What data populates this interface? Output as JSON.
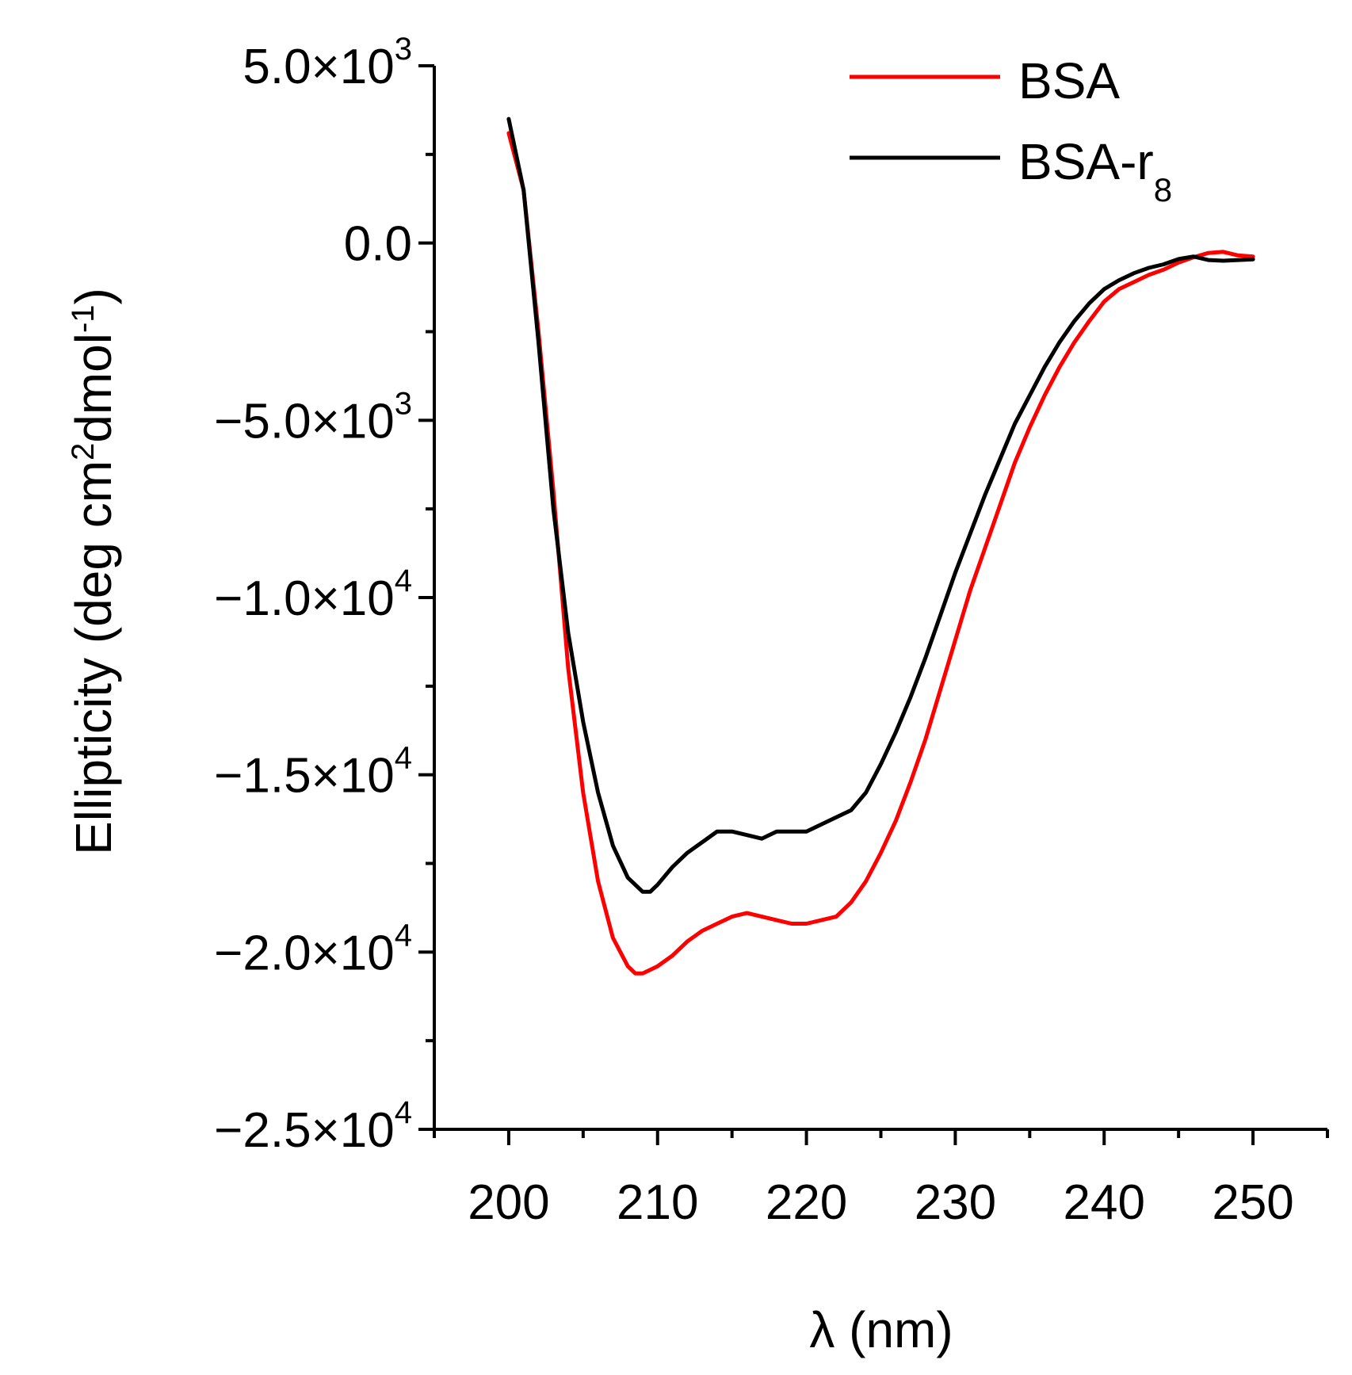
{
  "chart_data": {
    "type": "line",
    "title": "",
    "xlabel": "λ (nm)",
    "ylabel": {
      "base": "Ellipticity (deg cm",
      "sup1": "2",
      "mid": "dmol",
      "sup2": "-1",
      "end": ")"
    },
    "xlim": [
      195,
      255
    ],
    "ylim": [
      -25000,
      5000
    ],
    "x_ticks": [
      {
        "value": 200,
        "label": "200"
      },
      {
        "value": 210,
        "label": "210"
      },
      {
        "value": 220,
        "label": "220"
      },
      {
        "value": 230,
        "label": "230"
      },
      {
        "value": 240,
        "label": "240"
      },
      {
        "value": 250,
        "label": "250"
      }
    ],
    "y_ticks": [
      {
        "value": 5000,
        "mantissa": "5.0×10",
        "exponent": "3"
      },
      {
        "value": 0,
        "mantissa": "0.0",
        "exponent": ""
      },
      {
        "value": -5000,
        "mantissa": "−5.0×10",
        "exponent": "3"
      },
      {
        "value": -10000,
        "mantissa": "−1.0×10",
        "exponent": "4"
      },
      {
        "value": -15000,
        "mantissa": "−1.5×10",
        "exponent": "4"
      },
      {
        "value": -20000,
        "mantissa": "−2.0×10",
        "exponent": "4"
      },
      {
        "value": -25000,
        "mantissa": "−2.5×10",
        "exponent": "4"
      }
    ],
    "legend": {
      "placement": "top-right",
      "entries": [
        {
          "label": "BSA",
          "subscript": "",
          "color": "#ff0000"
        },
        {
          "label": "BSA-r",
          "subscript": "8",
          "color": "#000000"
        }
      ]
    },
    "series": [
      {
        "name": "BSA",
        "color": "#ff0000",
        "x": [
          200,
          201,
          202,
          203,
          204,
          205,
          206,
          207,
          208,
          208.5,
          209,
          210,
          211,
          212,
          213,
          214,
          215,
          216,
          217,
          218,
          219,
          220,
          221,
          222,
          223,
          224,
          225,
          226,
          227,
          228,
          229,
          230,
          231,
          232,
          233,
          234,
          235,
          236,
          237,
          238,
          239,
          240,
          241,
          242,
          243,
          244,
          245,
          246,
          247,
          248,
          249,
          250
        ],
        "y": [
          3100,
          1500,
          -2500,
          -7000,
          -12000,
          -15500,
          -18000,
          -19600,
          -20400,
          -20600,
          -20600,
          -20400,
          -20100,
          -19700,
          -19400,
          -19200,
          -19000,
          -18900,
          -19000,
          -19100,
          -19200,
          -19200,
          -19100,
          -19000,
          -18600,
          -18000,
          -17200,
          -16300,
          -15200,
          -14000,
          -12600,
          -11200,
          -9800,
          -8600,
          -7400,
          -6200,
          -5200,
          -4300,
          -3500,
          -2800,
          -2200,
          -1650,
          -1300,
          -1100,
          -900,
          -750,
          -550,
          -400,
          -280,
          -250,
          -350,
          -380
        ]
      },
      {
        "name": "BSA-r8",
        "color": "#000000",
        "x": [
          200,
          201,
          202,
          203,
          204,
          205,
          206,
          207,
          208,
          209,
          209.5,
          210,
          211,
          212,
          213,
          214,
          215,
          216,
          217,
          218,
          219,
          220,
          221,
          222,
          223,
          224,
          225,
          226,
          227,
          228,
          229,
          230,
          231,
          232,
          233,
          234,
          235,
          236,
          237,
          238,
          239,
          240,
          241,
          242,
          243,
          244,
          245,
          246,
          247,
          248,
          249,
          250
        ],
        "y": [
          3500,
          1500,
          -2800,
          -7500,
          -11000,
          -13500,
          -15500,
          -17000,
          -17900,
          -18300,
          -18300,
          -18100,
          -17600,
          -17200,
          -16900,
          -16600,
          -16600,
          -16700,
          -16800,
          -16600,
          -16600,
          -16600,
          -16400,
          -16200,
          -16000,
          -15500,
          -14700,
          -13800,
          -12800,
          -11700,
          -10500,
          -9300,
          -8200,
          -7100,
          -6100,
          -5100,
          -4300,
          -3500,
          -2800,
          -2200,
          -1700,
          -1300,
          -1050,
          -850,
          -700,
          -600,
          -450,
          -380,
          -480,
          -500,
          -480,
          -460
        ]
      }
    ]
  }
}
